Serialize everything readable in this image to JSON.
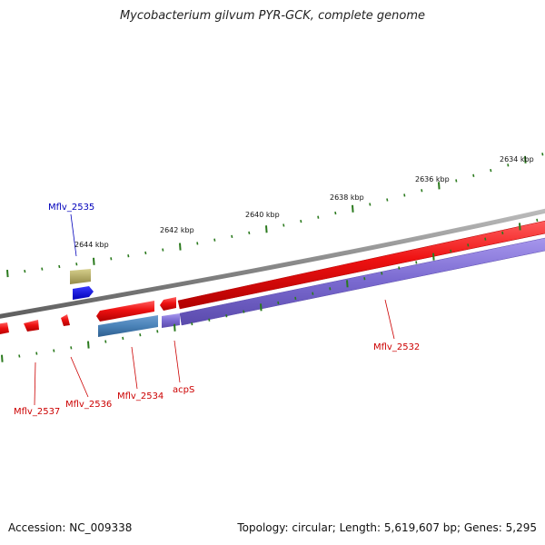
{
  "title": "Mycobacterium gilvum PYR-GCK, complete genome",
  "footer": {
    "accession": "Accession: NC_009338",
    "summary": "Topology: circular; Length: 5,619,607 bp; Genes: 5,295"
  },
  "colors": {
    "backbone": "#888888",
    "forward_gene": "#ee1111",
    "reverse_gene": "#7a6ad0",
    "highlight_forward": "#0a0ae0",
    "highlight_reverse": "#4a82b8",
    "other_feature": "#b6ad62",
    "tick": "#2b7a1e",
    "label_red": "#cc0000",
    "label_blue": "#0000bb"
  },
  "scale_labels": [
    {
      "text": "2644 kbp"
    },
    {
      "text": "2642 kbp"
    },
    {
      "text": "2640 kbp"
    },
    {
      "text": "2638 kbp"
    },
    {
      "text": "2636 kbp"
    },
    {
      "text": "2634 kbp"
    }
  ],
  "gene_labels": [
    {
      "text": "Mflv_2535",
      "color": "blue"
    },
    {
      "text": "Mflv_2532",
      "color": "red"
    },
    {
      "text": "Mflv_2537",
      "color": "red"
    },
    {
      "text": "Mflv_2536",
      "color": "red"
    },
    {
      "text": "Mflv_2534",
      "color": "red"
    },
    {
      "text": "acpS",
      "color": "red"
    }
  ]
}
